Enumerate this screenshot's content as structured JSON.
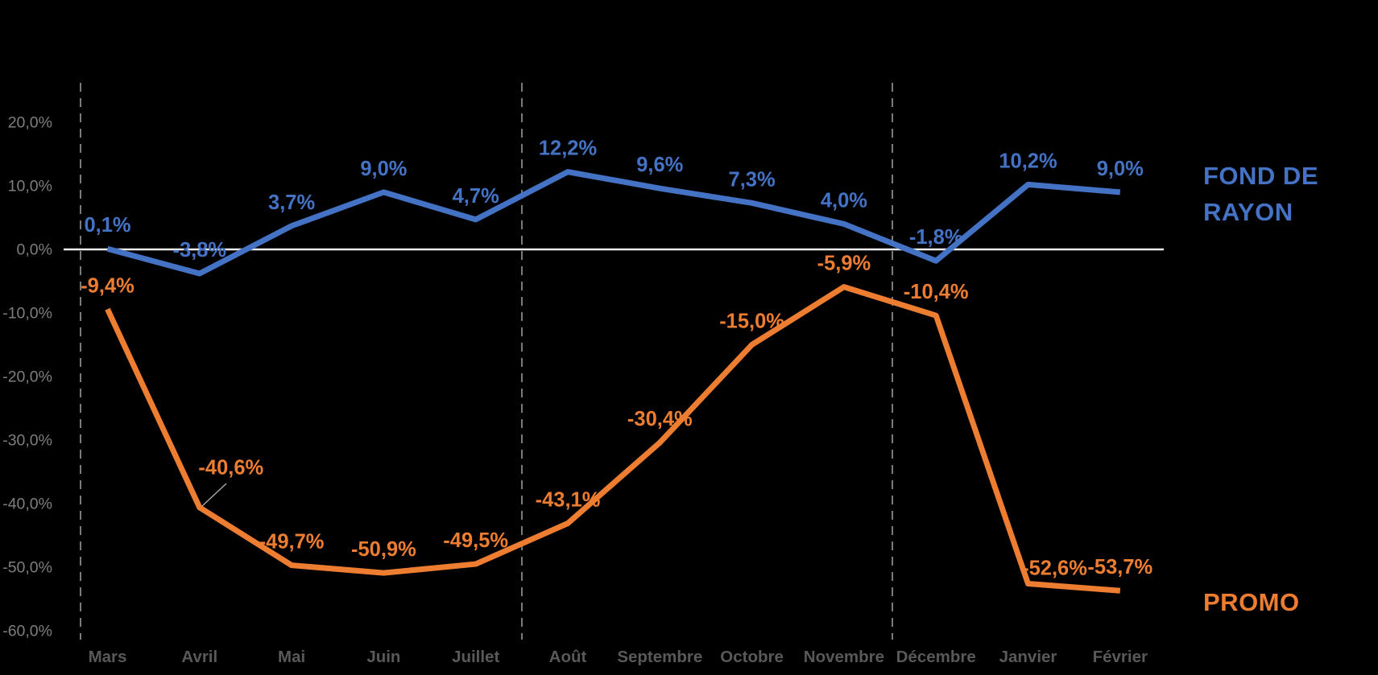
{
  "colors": {
    "background": "#000000",
    "series_fond_de_rayon": "#4472C4",
    "series_promo": "#ED7D31",
    "zero_line": "#EDEDED",
    "vertical_gridline": "#7A7A7A",
    "y_tick_label": "#7E7E7E",
    "month_label": "#595959",
    "leader_line": "#ABABAB"
  },
  "legend": {
    "fond_de_rayon_line1": "FOND DE",
    "fond_de_rayon_line2": "RAYON",
    "promo": "PROMO"
  },
  "chart_data": {
    "type": "line",
    "title": "",
    "xlabel": "",
    "ylabel": "",
    "categories": [
      "Mars",
      "Avril",
      "Mai",
      "Juin",
      "Juillet",
      "Août",
      "Septembre",
      "Octobre",
      "Novembre",
      "Décembre",
      "Janvier",
      "Février"
    ],
    "series": [
      {
        "name": "FOND DE RAYON",
        "color": "#4472C4",
        "values": [
          0.1,
          -3.8,
          3.7,
          9.0,
          4.7,
          12.2,
          9.6,
          7.3,
          4.0,
          -1.8,
          10.2,
          9.0
        ],
        "labels": [
          "0,1%",
          "-3,8%",
          "3,7%",
          "9,0%",
          "4,7%",
          "12,2%",
          "9,6%",
          "7,3%",
          "4,0%",
          "-1,8%",
          "10,2%",
          "9,0%"
        ]
      },
      {
        "name": "PROMO",
        "color": "#ED7D31",
        "values": [
          -9.4,
          -40.6,
          -49.7,
          -50.9,
          -49.5,
          -43.1,
          -30.4,
          -15.0,
          -5.9,
          -10.4,
          -52.6,
          -53.7
        ],
        "labels": [
          "-9,4%",
          "-40,6%",
          "-49,7%",
          "-50,9%",
          "-49,5%",
          "-43,1%",
          "-30,4%",
          "-15,0%",
          "-5,9%",
          "-10,4%",
          "-52,6%",
          "-53,7%"
        ]
      }
    ],
    "y_axis": {
      "tick_labels": [
        "20,0%",
        "10,0%",
        "0,0%",
        "-10,0%",
        "-20,0%",
        "-30,0%",
        "-40,0%",
        "-50,0%",
        "-60,0%"
      ],
      "tick_values": [
        20,
        10,
        0,
        -10,
        -20,
        -30,
        -40,
        -50,
        -60
      ],
      "ylim": [
        -61,
        26
      ]
    },
    "gridlines": {
      "horizontal": "zero line only",
      "vertical_dashed_positions": [
        "left edge before Mars",
        "between Juillet and Août",
        "between Novembre and Décembre"
      ]
    },
    "legend_position": "right",
    "annotations": [
      "label -40,6% connected to Avril point by thin leader line"
    ]
  }
}
